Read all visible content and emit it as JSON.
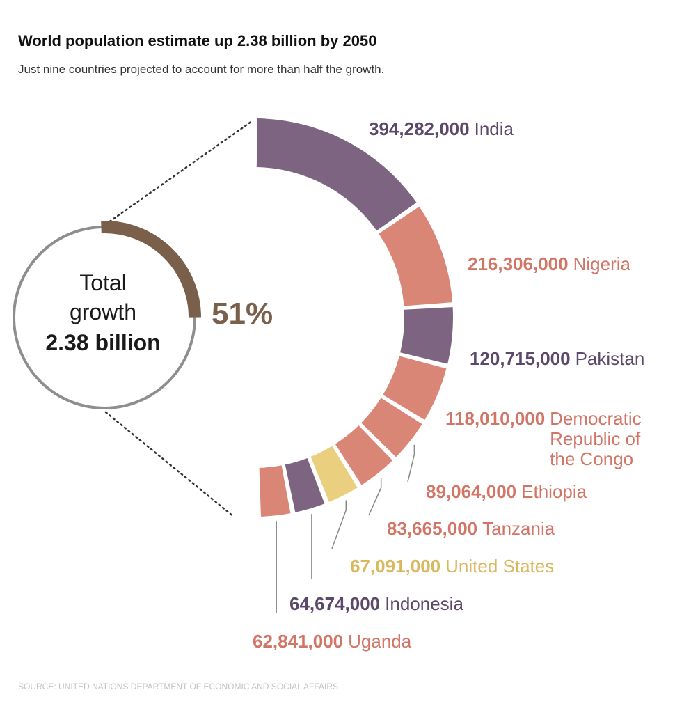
{
  "header": {
    "title": "World population estimate up 2.38 billion by 2050",
    "subtitle": "Just nine countries projected to account for more than half the growth."
  },
  "footer": {
    "source": "SOURCE: UNITED NATIONS DEPARTMENT OF ECONOMIC AND SOCIAL AFFAIRS"
  },
  "summary": {
    "total_label_line1": "Total",
    "total_label_line2": "growth",
    "total_value": "2.38 billion",
    "share_label": "51%",
    "share_fraction": 0.51
  },
  "chart_data": {
    "type": "pie",
    "title": "World population estimate up 2.38 billion by 2050",
    "subtitle": "Just nine countries projected to account for more than half the growth.",
    "total": "2.38 billion",
    "share_of_total": "51%",
    "series": [
      {
        "name": "India",
        "value": 394282000,
        "value_label": "394,282,000",
        "label_lines": [
          "India"
        ],
        "color": "#7d6582"
      },
      {
        "name": "Nigeria",
        "value": 216306000,
        "value_label": "216,306,000",
        "label_lines": [
          "Nigeria"
        ],
        "color": "#d98677"
      },
      {
        "name": "Pakistan",
        "value": 120715000,
        "value_label": "120,715,000",
        "label_lines": [
          "Pakistan"
        ],
        "color": "#7d6582"
      },
      {
        "name": "Democratic Republic of the Congo",
        "value": 118010000,
        "value_label": "118,010,000",
        "label_lines": [
          "Democratic",
          "Republic of",
          "the Congo"
        ],
        "color": "#d98677"
      },
      {
        "name": "Ethiopia",
        "value": 89064000,
        "value_label": "89,064,000",
        "label_lines": [
          "Ethiopia"
        ],
        "color": "#d98677"
      },
      {
        "name": "Tanzania",
        "value": 83665000,
        "value_label": "83,665,000",
        "label_lines": [
          "Tanzania"
        ],
        "color": "#d98677"
      },
      {
        "name": "United States",
        "value": 67091000,
        "value_label": "67,091,000",
        "label_lines": [
          "United States"
        ],
        "color": "#e9cf7e"
      },
      {
        "name": "Indonesia",
        "value": 64674000,
        "value_label": "64,674,000",
        "label_lines": [
          "Indonesia"
        ],
        "color": "#7d6582"
      },
      {
        "name": "Uganda",
        "value": 62841000,
        "value_label": "62,841,000",
        "label_lines": [
          "Uganda"
        ],
        "color": "#d98677"
      }
    ]
  },
  "colors": {
    "highlight_brown": "#7a5f4b",
    "ring_gray": "#8e8e8e",
    "value_purple": "#5c4868",
    "value_salmon": "#d17667",
    "value_gold": "#d9b85e"
  }
}
